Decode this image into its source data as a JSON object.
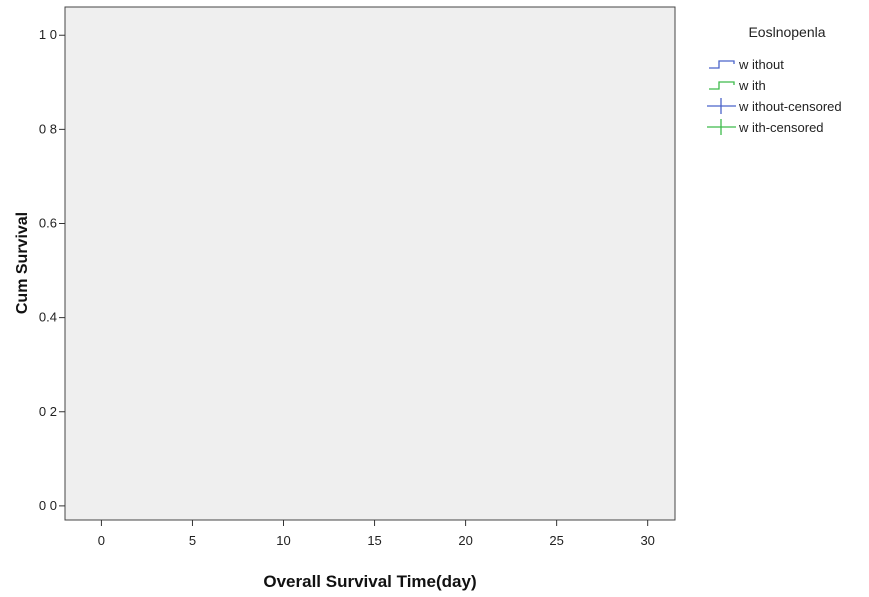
{
  "chart_data": {
    "type": "line",
    "title": "",
    "xlabel": "Overall Survival Time(day)",
    "ylabel": "Cum Survival",
    "xlim": [
      -2,
      31.5
    ],
    "ylim": [
      -0.03,
      1.06
    ],
    "x_ticks": [
      0,
      5,
      10,
      15,
      20,
      25,
      30
    ],
    "x_tick_labels": [
      "0",
      "5",
      "10",
      "15",
      "20",
      "25",
      "30"
    ],
    "y_ticks": [
      0.0,
      0.2,
      0.4,
      0.6,
      0.8,
      1.0
    ],
    "y_tick_labels": [
      "0 0",
      "0 2",
      "0.4",
      "0.6",
      "0 8",
      "1 0"
    ],
    "grid": false,
    "plot_background": "#efefef",
    "legend": {
      "title": "Eoslnopenla",
      "position": "right",
      "entries": [
        {
          "label": "w ithout",
          "symbol": "step",
          "color": "#4a63c9"
        },
        {
          "label": "w ith",
          "symbol": "step",
          "color": "#3dbb4a"
        },
        {
          "label": "w ithout-censored",
          "symbol": "plus",
          "color": "#4a63c9"
        },
        {
          "label": "w ith-censored",
          "symbol": "plus",
          "color": "#3dbb4a"
        }
      ]
    },
    "series": []
  }
}
